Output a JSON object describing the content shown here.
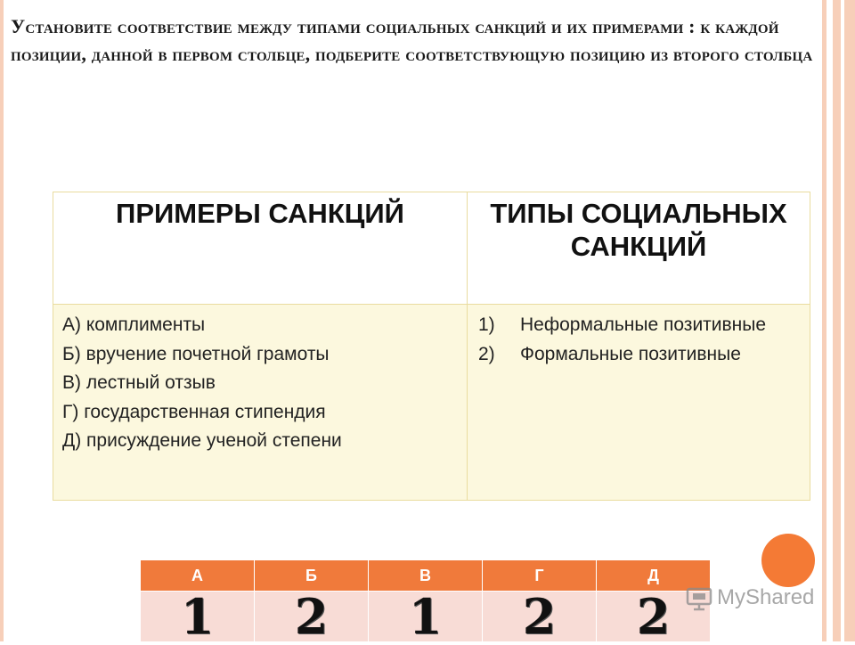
{
  "title": "Установите соответствие между  типами социальных санкций и их примерами : к каждой позиции, данной в первом столбце, подберите соответствующую позицию из второго столбца",
  "table": {
    "header_left": "ПРИМЕРЫ САНКЦИЙ",
    "header_right": "ТИПЫ СОЦИАЛЬНЫХ САНКЦИЙ",
    "examples": [
      "А) комплименты",
      "Б) вручение почетной грамоты",
      "В) лестный отзыв",
      "Г) государственная стипендия",
      "Д) присуждение ученой степени"
    ],
    "types": [
      {
        "num": "1)",
        "text": "Неформальные позитивные"
      },
      {
        "num": "2)",
        "text": "Формальные позитивные"
      }
    ]
  },
  "answer": {
    "letters": [
      "А",
      "Б",
      "В",
      "Г",
      "Д"
    ],
    "digits": [
      "1",
      "2",
      "1",
      "2",
      "2"
    ]
  },
  "watermark": {
    "text": "MyShared",
    "icon": "presentation-icon"
  },
  "colors": {
    "accent": "#f07a3b",
    "frame": "#f7cfb9",
    "table_body": "#fcf8de",
    "answer_row": "#f8dcd6"
  }
}
